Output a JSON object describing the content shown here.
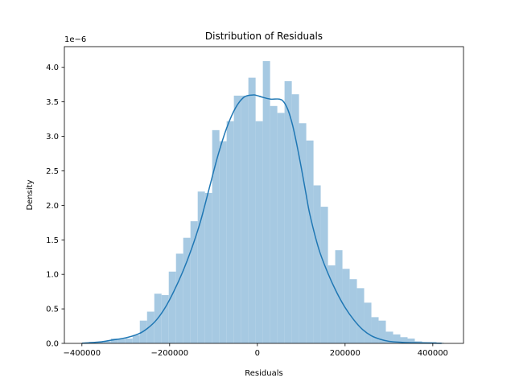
{
  "chart_data": {
    "type": "bar",
    "title": "Distribution of Residuals",
    "xlabel": "Residuals",
    "ylabel": "Density",
    "y_offset_text": "1e−6",
    "xlim": [
      -440000,
      470000
    ],
    "ylim": [
      0,
      4.3
    ],
    "xticks": [
      {
        "value": -400000,
        "label": "−400000"
      },
      {
        "value": -200000,
        "label": "−200000"
      },
      {
        "value": 0,
        "label": "0"
      },
      {
        "value": 200000,
        "label": "200000"
      },
      {
        "value": 400000,
        "label": "400000"
      }
    ],
    "yticks": [
      {
        "value": 0.0,
        "label": "0.0"
      },
      {
        "value": 0.5,
        "label": "0.5"
      },
      {
        "value": 1.0,
        "label": "1.0"
      },
      {
        "value": 1.5,
        "label": "1.5"
      },
      {
        "value": 2.0,
        "label": "2.0"
      },
      {
        "value": 2.5,
        "label": "2.5"
      },
      {
        "value": 3.0,
        "label": "3.0"
      },
      {
        "value": 3.5,
        "label": "3.5"
      },
      {
        "value": 4.0,
        "label": "4.0"
      }
    ],
    "grid": false,
    "bar_color": "#a6c9e2",
    "line_color": "#1f77b4",
    "histogram": {
      "bin_start": -400000,
      "bin_width": 16500,
      "values": [
        0.01,
        0.02,
        0.02,
        0.03,
        0.07,
        0.06,
        0.07,
        0.12,
        0.33,
        0.46,
        0.72,
        0.7,
        1.04,
        1.3,
        1.53,
        1.77,
        2.2,
        2.18,
        3.09,
        2.93,
        3.22,
        3.59,
        3.59,
        3.85,
        3.22,
        4.09,
        3.44,
        3.34,
        3.8,
        3.61,
        3.19,
        2.94,
        2.29,
        1.98,
        1.13,
        1.35,
        1.08,
        0.93,
        0.8,
        0.59,
        0.38,
        0.33,
        0.17,
        0.13,
        0.09,
        0.07,
        0.03,
        0.02,
        0.02,
        0.01
      ]
    },
    "kde": {
      "x": [
        -400000,
        -360000,
        -330000,
        -300000,
        -270000,
        -250000,
        -230000,
        -210000,
        -190000,
        -170000,
        -150000,
        -130000,
        -110000,
        -90000,
        -70000,
        -50000,
        -30000,
        -10000,
        0,
        10000,
        30000,
        50000,
        60000,
        70000,
        80000,
        90000,
        100000,
        110000,
        120000,
        140000,
        160000,
        180000,
        200000,
        220000,
        240000,
        260000,
        280000,
        300000,
        330000,
        360000,
        400000,
        420000
      ],
      "y": [
        0.002,
        0.02,
        0.05,
        0.08,
        0.14,
        0.22,
        0.34,
        0.52,
        0.76,
        1.04,
        1.37,
        1.76,
        2.24,
        2.72,
        3.12,
        3.41,
        3.57,
        3.6,
        3.59,
        3.57,
        3.54,
        3.54,
        3.5,
        3.38,
        3.17,
        2.88,
        2.55,
        2.2,
        1.86,
        1.37,
        1.03,
        0.75,
        0.52,
        0.34,
        0.2,
        0.11,
        0.06,
        0.03,
        0.015,
        0.008,
        0.003,
        0.001
      ]
    }
  }
}
